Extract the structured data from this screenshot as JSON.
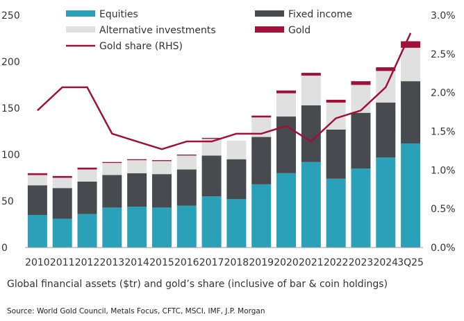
{
  "caption": "Global financial assets ($tr) and gold’s share (inclusive of bar & coin holdings)",
  "source": "Source: World Gold Council, Metals Focus, CFTC, MSCI, IMF, J.P. Morgan",
  "chart_data": {
    "type": "bar",
    "stacked": true,
    "categories": [
      "2010",
      "2011",
      "2012",
      "2013",
      "2014",
      "2015",
      "2016",
      "2017",
      "2018",
      "2019",
      "2020",
      "2021",
      "2022",
      "2023",
      "2024",
      "3Q25"
    ],
    "series": [
      {
        "name": "Equities",
        "color": "#2aa1b8",
        "values": [
          35,
          31,
          36,
          43,
          44,
          43,
          45,
          55,
          52,
          68,
          80,
          92,
          74,
          85,
          97,
          112
        ]
      },
      {
        "name": "Fixed income",
        "color": "#474b50",
        "values": [
          32,
          33,
          35,
          35,
          36,
          36,
          39,
          44,
          43,
          51,
          61,
          61,
          53,
          60,
          59,
          67
        ]
      },
      {
        "name": "Alternative investments",
        "color": "#e0e0e0",
        "values": [
          11,
          11,
          13,
          13,
          14,
          14,
          15,
          18,
          20,
          21,
          25,
          32,
          29,
          30,
          34,
          36
        ]
      },
      {
        "name": "Gold",
        "color": "#a0113a",
        "values": [
          2,
          2,
          2,
          1,
          1,
          1,
          1,
          1,
          0,
          2,
          3,
          3,
          3,
          4,
          4,
          7
        ]
      }
    ],
    "line": {
      "name": "Gold share (RHS)",
      "color": "#a0113a",
      "axis": "right",
      "values": [
        1.77,
        2.07,
        2.07,
        1.47,
        1.37,
        1.27,
        1.37,
        1.37,
        1.47,
        1.47,
        1.57,
        1.37,
        1.67,
        1.77,
        2.07,
        2.77
      ]
    },
    "yaxis_left": {
      "min": 0,
      "max": 250,
      "ticks": [
        0,
        50,
        100,
        150,
        200,
        250
      ],
      "tick_labels": [
        "0",
        "50",
        "100",
        "150",
        "200",
        "250"
      ]
    },
    "yaxis_right": {
      "min": 0,
      "max": 3.0,
      "ticks": [
        0,
        0.5,
        1.0,
        1.5,
        2.0,
        2.5,
        3.0
      ],
      "tick_labels": [
        "0.0%",
        "0.5%",
        "1.0%",
        "1.5%",
        "2.0%",
        "2.5%",
        "3.0%"
      ]
    },
    "legend": [
      "Equities",
      "Fixed income",
      "Alternative investments",
      "Gold",
      "Gold share (RHS)"
    ],
    "legend_position": "top"
  }
}
